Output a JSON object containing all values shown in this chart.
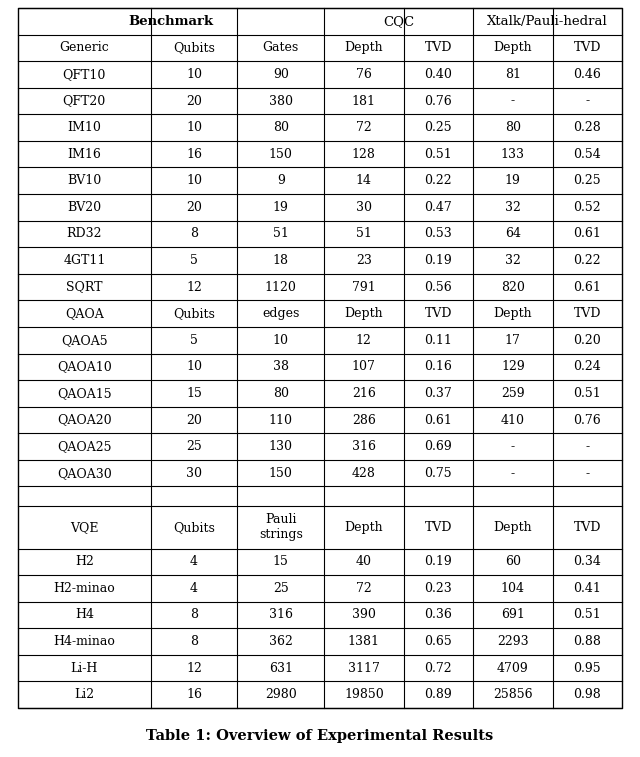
{
  "title": "Table 1: Overview of Experimental Results",
  "col_headers_row1": [
    "Benchmark",
    "",
    "",
    "CQC",
    "",
    "Xtalk/Pauli-hedral",
    ""
  ],
  "col_headers_row2": [
    "Generic",
    "Qubits",
    "Gates",
    "Depth",
    "TVD",
    "Depth",
    "TVD"
  ],
  "generic_rows": [
    [
      "QFT10",
      "10",
      "90",
      "76",
      "0.40",
      "81",
      "0.46"
    ],
    [
      "QFT20",
      "20",
      "380",
      "181",
      "0.76",
      "-",
      "-"
    ],
    [
      "IM10",
      "10",
      "80",
      "72",
      "0.25",
      "80",
      "0.28"
    ],
    [
      "IM16",
      "16",
      "150",
      "128",
      "0.51",
      "133",
      "0.54"
    ],
    [
      "BV10",
      "10",
      "9",
      "14",
      "0.22",
      "19",
      "0.25"
    ],
    [
      "BV20",
      "20",
      "19",
      "30",
      "0.47",
      "32",
      "0.52"
    ],
    [
      "RD32",
      "8",
      "51",
      "51",
      "0.53",
      "64",
      "0.61"
    ],
    [
      "4GT11",
      "5",
      "18",
      "23",
      "0.19",
      "32",
      "0.22"
    ],
    [
      "SQRT",
      "12",
      "1120",
      "791",
      "0.56",
      "820",
      "0.61"
    ]
  ],
  "qaoa_header": [
    "QAOA",
    "Qubits",
    "edges",
    "Depth",
    "TVD",
    "Depth",
    "TVD"
  ],
  "qaoa_rows": [
    [
      "QAOA5",
      "5",
      "10",
      "12",
      "0.11",
      "17",
      "0.20"
    ],
    [
      "QAOA10",
      "10",
      "38",
      "107",
      "0.16",
      "129",
      "0.24"
    ],
    [
      "QAOA15",
      "15",
      "80",
      "216",
      "0.37",
      "259",
      "0.51"
    ],
    [
      "QAOA20",
      "20",
      "110",
      "286",
      "0.61",
      "410",
      "0.76"
    ],
    [
      "QAOA25",
      "25",
      "130",
      "316",
      "0.69",
      "-",
      "-"
    ],
    [
      "QAOA30",
      "30",
      "150",
      "428",
      "0.75",
      "-",
      "-"
    ]
  ],
  "vqe_header": [
    "VQE",
    "Qubits",
    "Pauli\nstrings",
    "Depth",
    "TVD",
    "Depth",
    "TVD"
  ],
  "vqe_rows": [
    [
      "H2",
      "4",
      "15",
      "40",
      "0.19",
      "60",
      "0.34"
    ],
    [
      "H2-minao",
      "4",
      "25",
      "72",
      "0.23",
      "104",
      "0.41"
    ],
    [
      "H4",
      "8",
      "316",
      "390",
      "0.36",
      "691",
      "0.51"
    ],
    [
      "H4-minao",
      "8",
      "362",
      "1381",
      "0.65",
      "2293",
      "0.88"
    ],
    [
      "Li-H",
      "12",
      "631",
      "3117",
      "0.72",
      "4709",
      "0.95"
    ],
    [
      "Li2",
      "16",
      "2980",
      "19850",
      "0.89",
      "25856",
      "0.98"
    ]
  ],
  "background_color": "#ffffff",
  "line_color": "#000000",
  "text_color": "#000000",
  "header_fontsize": 9.5,
  "cell_fontsize": 9.0,
  "title_fontsize": 10.5
}
